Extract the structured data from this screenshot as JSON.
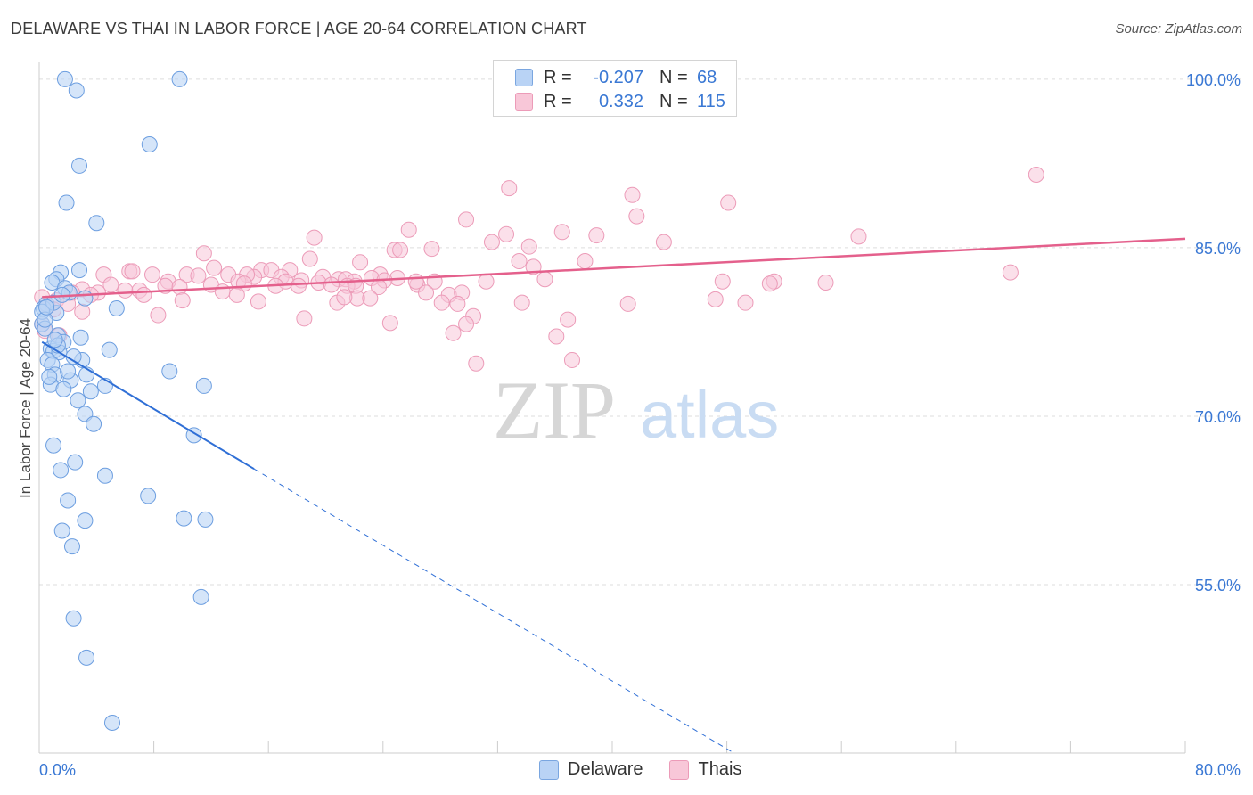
{
  "header": {
    "title": "DELAWARE VS THAI IN LABOR FORCE | AGE 20-64 CORRELATION CHART",
    "source": "Source: ZipAtlas.com"
  },
  "legend_top": {
    "rows": [
      {
        "r_label": "R =",
        "r_value": "-0.207",
        "n_label": "N =",
        "n_value": "68"
      },
      {
        "r_label": "R =",
        "r_value": "0.332",
        "n_label": "N =",
        "n_value": "115"
      }
    ]
  },
  "legend_bottom": {
    "delaware": "Delaware",
    "thais": "Thais"
  },
  "colors": {
    "delaware_fill": "#b9d3f5",
    "delaware_stroke": "#6c9ee0",
    "delaware_line": "#2f6fd6",
    "thai_fill": "#f8c7d8",
    "thai_stroke": "#ec9bb8",
    "thai_line": "#e4608c",
    "axis_text": "#3a78d4",
    "grid": "#dddddd"
  },
  "chart_data": {
    "type": "scatter",
    "title": "DELAWARE VS THAI IN LABOR FORCE | AGE 20-64 CORRELATION CHART",
    "xlabel": "",
    "ylabel": "In Labor Force | Age 20-64",
    "xlim": [
      0,
      80
    ],
    "ylim": [
      40,
      101.5
    ],
    "x_tick_labels": [
      "0.0%",
      "80.0%"
    ],
    "y_ticks": [
      55,
      70,
      85,
      100
    ],
    "y_tick_labels": [
      "55.0%",
      "70.0%",
      "85.0%",
      "100.0%"
    ],
    "watermark": {
      "zip": "ZIP",
      "atlas": "atlas"
    },
    "series": [
      {
        "name": "Delaware",
        "R": -0.207,
        "N": 68,
        "trend": {
          "solid_x": [
            0.2,
            15
          ],
          "y_at": [
            76.6,
            65.3
          ],
          "dashed_to_x": 48.5,
          "dashed_to_y": 40
        },
        "points": [
          [
            1.8,
            100.0
          ],
          [
            2.6,
            99.0
          ],
          [
            9.8,
            100.0
          ],
          [
            7.7,
            94.2
          ],
          [
            2.8,
            92.3
          ],
          [
            1.9,
            89.0
          ],
          [
            4.0,
            87.2
          ],
          [
            2.8,
            83.0
          ],
          [
            1.5,
            82.8
          ],
          [
            1.2,
            82.2
          ],
          [
            0.9,
            81.9
          ],
          [
            1.8,
            81.4
          ],
          [
            2.1,
            81.0
          ],
          [
            0.5,
            80.0
          ],
          [
            0.3,
            79.6
          ],
          [
            1.2,
            79.2
          ],
          [
            5.4,
            79.6
          ],
          [
            3.2,
            80.5
          ],
          [
            0.2,
            78.2
          ],
          [
            0.4,
            77.8
          ],
          [
            1.3,
            77.2
          ],
          [
            2.9,
            77.0
          ],
          [
            1.7,
            76.6
          ],
          [
            0.8,
            76.0
          ],
          [
            1.0,
            75.8
          ],
          [
            1.4,
            75.7
          ],
          [
            0.6,
            75.0
          ],
          [
            0.9,
            74.6
          ],
          [
            3.0,
            75.0
          ],
          [
            1.1,
            73.7
          ],
          [
            3.3,
            73.7
          ],
          [
            2.2,
            73.2
          ],
          [
            4.9,
            75.9
          ],
          [
            0.8,
            72.8
          ],
          [
            1.7,
            72.4
          ],
          [
            3.6,
            72.2
          ],
          [
            4.6,
            72.7
          ],
          [
            9.1,
            74.0
          ],
          [
            11.5,
            72.7
          ],
          [
            2.7,
            71.4
          ],
          [
            3.2,
            70.2
          ],
          [
            3.8,
            69.3
          ],
          [
            10.8,
            68.3
          ],
          [
            1.0,
            67.4
          ],
          [
            1.5,
            65.2
          ],
          [
            2.5,
            65.9
          ],
          [
            4.6,
            64.7
          ],
          [
            2.0,
            62.5
          ],
          [
            7.6,
            62.9
          ],
          [
            3.2,
            60.7
          ],
          [
            10.1,
            60.9
          ],
          [
            11.6,
            60.8
          ],
          [
            1.6,
            59.8
          ],
          [
            2.3,
            58.4
          ],
          [
            11.3,
            53.9
          ],
          [
            2.4,
            52.0
          ],
          [
            3.3,
            48.5
          ],
          [
            5.1,
            42.7
          ],
          [
            0.2,
            79.3
          ],
          [
            1.0,
            80.1
          ],
          [
            0.4,
            78.6
          ],
          [
            1.6,
            80.8
          ],
          [
            2.4,
            75.3
          ],
          [
            0.7,
            73.5
          ],
          [
            1.3,
            76.3
          ],
          [
            2.0,
            74.0
          ],
          [
            0.5,
            79.7
          ],
          [
            1.1,
            76.8
          ]
        ]
      },
      {
        "name": "Thais",
        "R": 0.332,
        "N": 115,
        "trend": {
          "x": [
            0.2,
            80
          ],
          "y": [
            80.6,
            85.8
          ]
        },
        "points": [
          [
            69.6,
            91.5
          ],
          [
            32.8,
            90.3
          ],
          [
            41.4,
            89.7
          ],
          [
            48.1,
            89.0
          ],
          [
            41.7,
            87.8
          ],
          [
            29.8,
            87.5
          ],
          [
            25.8,
            86.6
          ],
          [
            32.6,
            86.2
          ],
          [
            36.5,
            86.4
          ],
          [
            38.9,
            86.1
          ],
          [
            57.2,
            86.0
          ],
          [
            19.2,
            85.9
          ],
          [
            43.6,
            85.5
          ],
          [
            31.6,
            85.5
          ],
          [
            34.2,
            85.1
          ],
          [
            27.4,
            84.9
          ],
          [
            24.8,
            84.8
          ],
          [
            25.2,
            84.8
          ],
          [
            11.5,
            84.5
          ],
          [
            18.9,
            84.0
          ],
          [
            22.4,
            83.7
          ],
          [
            38.1,
            83.8
          ],
          [
            33.5,
            83.8
          ],
          [
            12.2,
            83.2
          ],
          [
            34.5,
            83.3
          ],
          [
            15.5,
            83.0
          ],
          [
            16.2,
            83.0
          ],
          [
            17.5,
            83.0
          ],
          [
            6.3,
            82.9
          ],
          [
            6.5,
            82.9
          ],
          [
            67.8,
            82.8
          ],
          [
            10.3,
            82.6
          ],
          [
            11.1,
            82.5
          ],
          [
            13.2,
            82.6
          ],
          [
            16.9,
            82.4
          ],
          [
            23.8,
            82.6
          ],
          [
            15.0,
            82.4
          ],
          [
            14.5,
            82.6
          ],
          [
            19.8,
            82.4
          ],
          [
            20.9,
            82.2
          ],
          [
            25.0,
            82.3
          ],
          [
            4.5,
            82.6
          ],
          [
            7.9,
            82.6
          ],
          [
            9.0,
            82.0
          ],
          [
            13.9,
            82.0
          ],
          [
            17.2,
            82.0
          ],
          [
            18.3,
            82.1
          ],
          [
            21.4,
            82.2
          ],
          [
            22.0,
            82.0
          ],
          [
            23.2,
            82.3
          ],
          [
            24.1,
            82.1
          ],
          [
            27.6,
            82.0
          ],
          [
            31.2,
            82.0
          ],
          [
            35.3,
            82.2
          ],
          [
            47.7,
            82.0
          ],
          [
            51.3,
            82.0
          ],
          [
            54.9,
            81.9
          ],
          [
            51.0,
            81.8
          ],
          [
            5.0,
            81.7
          ],
          [
            8.8,
            81.6
          ],
          [
            12.0,
            81.7
          ],
          [
            14.3,
            81.8
          ],
          [
            16.5,
            81.6
          ],
          [
            18.1,
            81.6
          ],
          [
            19.5,
            81.9
          ],
          [
            20.4,
            81.7
          ],
          [
            21.5,
            81.6
          ],
          [
            22.1,
            81.6
          ],
          [
            23.7,
            81.5
          ],
          [
            26.4,
            81.7
          ],
          [
            27.0,
            81.0
          ],
          [
            28.6,
            80.8
          ],
          [
            29.5,
            81.0
          ],
          [
            3.0,
            81.3
          ],
          [
            6.0,
            81.2
          ],
          [
            7.0,
            81.2
          ],
          [
            9.8,
            81.5
          ],
          [
            12.8,
            81.1
          ],
          [
            4.1,
            81.0
          ],
          [
            2.3,
            81.0
          ],
          [
            3.6,
            80.8
          ],
          [
            7.3,
            80.8
          ],
          [
            13.8,
            80.8
          ],
          [
            22.2,
            80.5
          ],
          [
            23.1,
            80.5
          ],
          [
            0.2,
            80.6
          ],
          [
            1.2,
            80.3
          ],
          [
            2.0,
            80.0
          ],
          [
            15.3,
            80.2
          ],
          [
            10.0,
            80.3
          ],
          [
            28.1,
            80.1
          ],
          [
            20.8,
            80.1
          ],
          [
            33.7,
            80.1
          ],
          [
            29.2,
            80.0
          ],
          [
            47.2,
            80.4
          ],
          [
            49.3,
            80.1
          ],
          [
            41.1,
            80.0
          ],
          [
            21.3,
            80.6
          ],
          [
            0.6,
            79.8
          ],
          [
            1.0,
            79.5
          ],
          [
            3.0,
            79.3
          ],
          [
            8.3,
            79.0
          ],
          [
            18.5,
            78.7
          ],
          [
            30.3,
            78.9
          ],
          [
            24.5,
            78.3
          ],
          [
            29.8,
            78.2
          ],
          [
            36.9,
            78.6
          ],
          [
            36.1,
            77.1
          ],
          [
            28.9,
            77.4
          ],
          [
            0.4,
            77.6
          ],
          [
            1.4,
            77.2
          ],
          [
            37.2,
            75.0
          ],
          [
            30.5,
            74.7
          ],
          [
            0.2,
            78.2
          ],
          [
            26.3,
            82.0
          ]
        ]
      }
    ]
  }
}
